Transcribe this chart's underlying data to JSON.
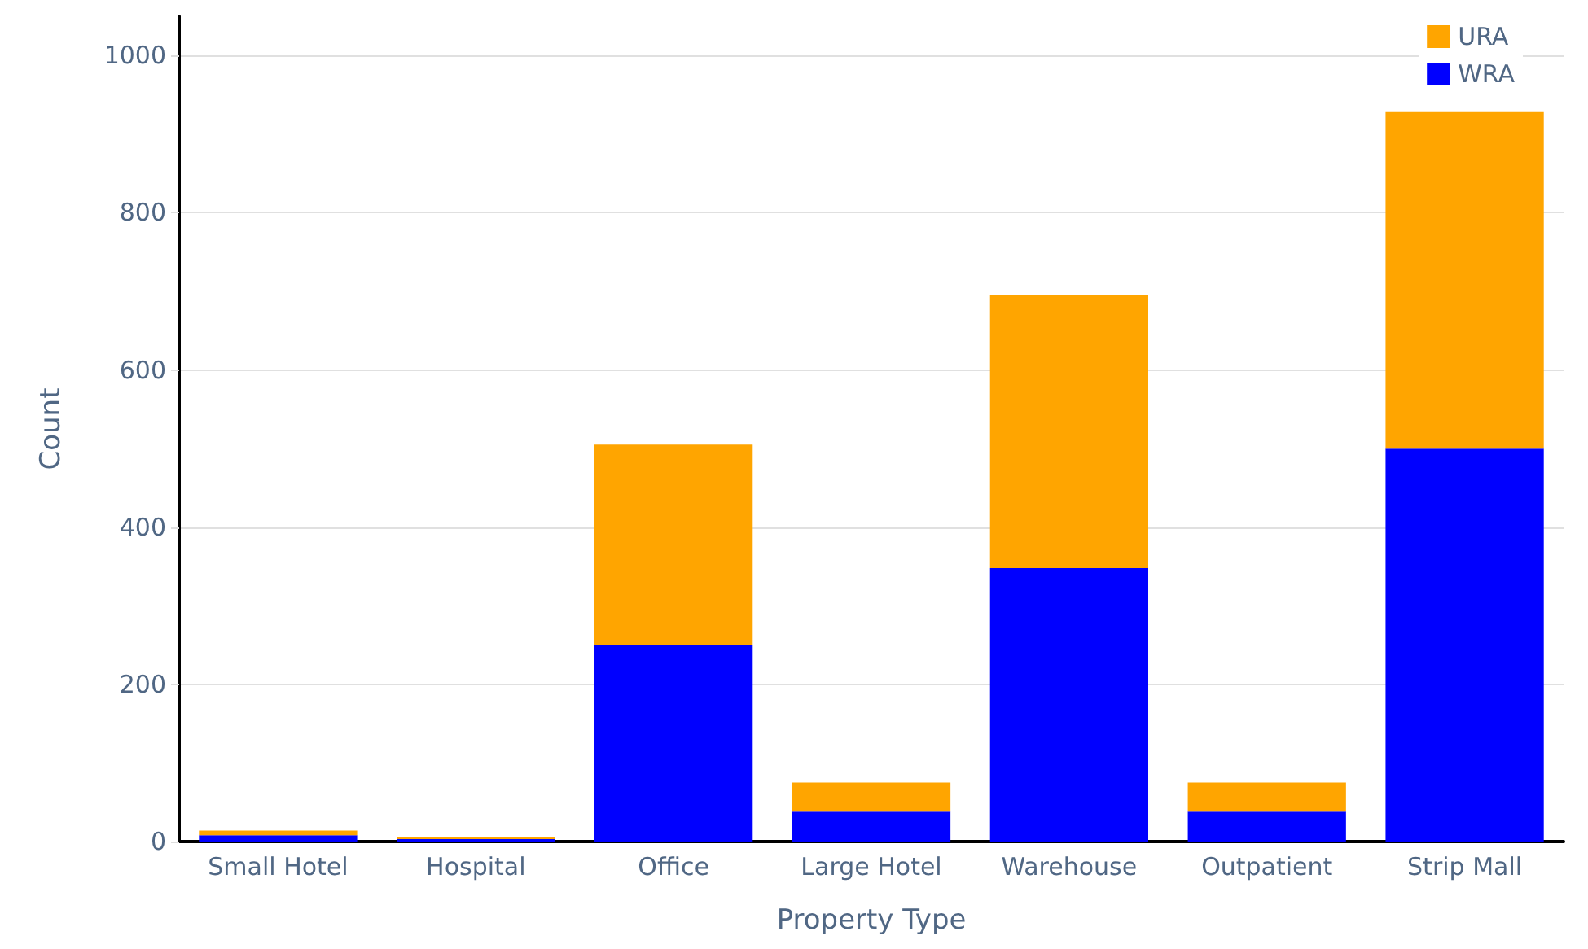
{
  "chart_data": {
    "type": "bar",
    "stacked": true,
    "xlabel": "Property Type",
    "ylabel": "Count",
    "categories": [
      "Small Hotel",
      "Hospital",
      "Office",
      "Large Hotel",
      "Warehouse",
      "Outpatient",
      "Strip Mall"
    ],
    "series": [
      {
        "name": "WRA",
        "color": "#0000ff",
        "values": [
          8,
          3,
          250,
          38,
          348,
          38,
          500
        ]
      },
      {
        "name": "URA",
        "color": "#ffa500",
        "values": [
          6,
          3,
          255,
          37,
          347,
          37,
          429
        ]
      }
    ],
    "ylim": [
      0,
      1050
    ],
    "yticks": [
      0,
      200,
      400,
      600,
      800,
      1000
    ],
    "grid": "y",
    "legend": "top right"
  }
}
